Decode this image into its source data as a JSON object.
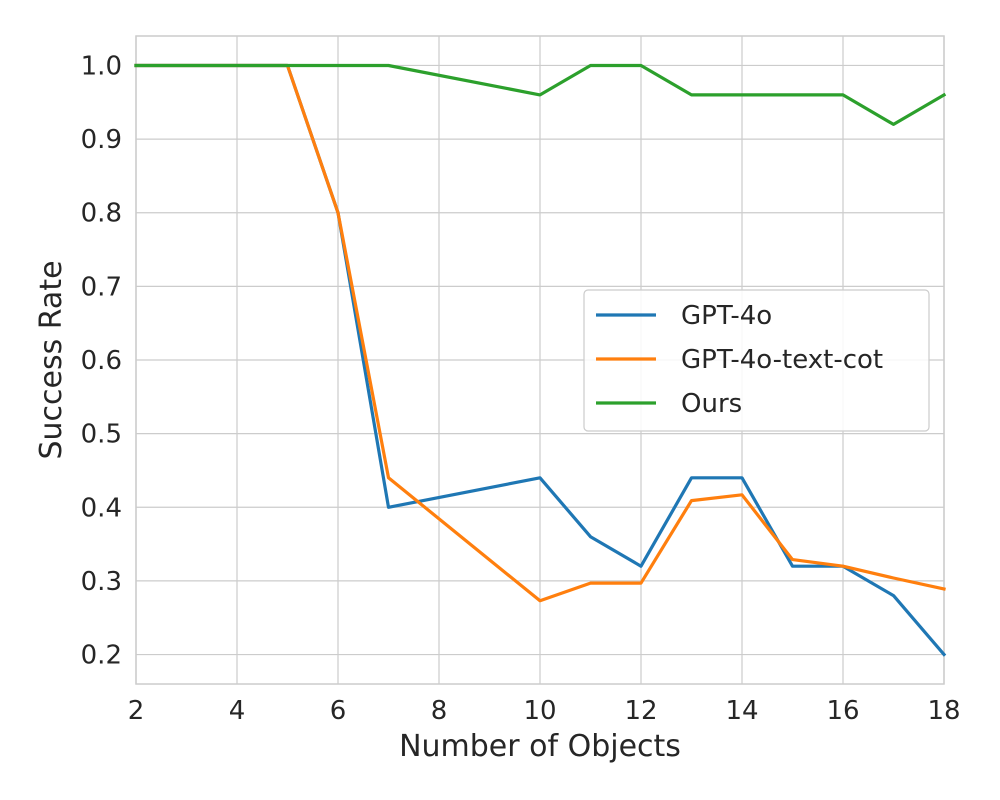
{
  "chart_data": {
    "type": "line",
    "xlabel": "Number of Objects",
    "ylabel": "Success Rate",
    "xlim": [
      2,
      18
    ],
    "ylim": [
      0.16,
      1.04
    ],
    "xticks": [
      2,
      4,
      6,
      8,
      10,
      12,
      14,
      16,
      18
    ],
    "yticks": [
      0.2,
      0.3,
      0.4,
      0.5,
      0.6,
      0.7,
      0.8,
      0.9,
      1.0
    ],
    "xtick_labels": [
      "2",
      "4",
      "6",
      "8",
      "10",
      "12",
      "14",
      "16",
      "18"
    ],
    "ytick_labels": [
      "0.2",
      "0.3",
      "0.4",
      "0.5",
      "0.6",
      "0.7",
      "0.8",
      "0.9",
      "1.0"
    ],
    "grid": true,
    "legend_position": "center-right",
    "series": [
      {
        "name": "GPT-4o",
        "color": "#1f77b4",
        "x": [
          2,
          3,
          4,
          5,
          6,
          7,
          10,
          11,
          12,
          13,
          14,
          15,
          16,
          17,
          18
        ],
        "values": [
          1.0,
          1.0,
          1.0,
          1.0,
          0.8,
          0.4,
          0.44,
          0.36,
          0.32,
          0.44,
          0.44,
          0.32,
          0.32,
          0.28,
          0.2
        ]
      },
      {
        "name": "GPT-4o-text-cot",
        "color": "#ff7f0e",
        "x": [
          2,
          3,
          4,
          5,
          6,
          7,
          10,
          11,
          12,
          13,
          14,
          15,
          16,
          17,
          18
        ],
        "values": [
          1.0,
          1.0,
          1.0,
          1.0,
          0.8,
          0.44,
          0.273,
          0.297,
          0.297,
          0.409,
          0.417,
          0.329,
          0.32,
          0.304,
          0.289
        ]
      },
      {
        "name": "Ours",
        "color": "#2ca02c",
        "x": [
          2,
          3,
          4,
          5,
          6,
          7,
          10,
          11,
          12,
          13,
          14,
          15,
          16,
          17,
          18
        ],
        "values": [
          1.0,
          1.0,
          1.0,
          1.0,
          1.0,
          1.0,
          0.96,
          1.0,
          1.0,
          0.96,
          0.96,
          0.96,
          0.96,
          0.92,
          0.96
        ]
      }
    ]
  }
}
